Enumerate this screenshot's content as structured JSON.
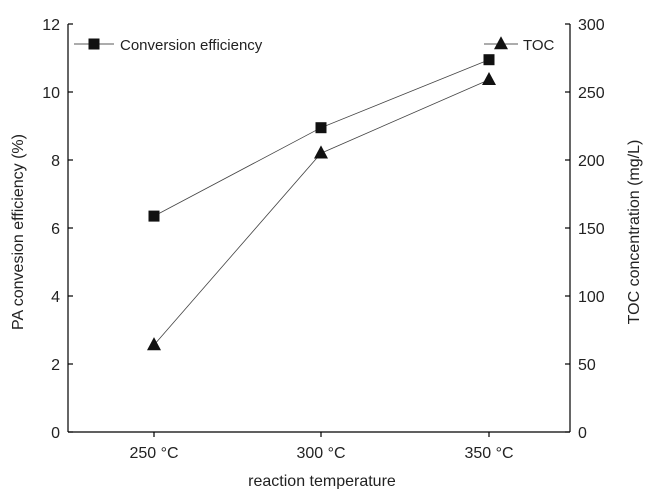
{
  "chart_data": {
    "type": "line",
    "categories": [
      "250 °C",
      "300 °C",
      "350 °C"
    ],
    "xlabel": "reaction temperature",
    "ylabel_left": "PA convesion efficiency (%)",
    "ylabel_right": "TOC concentration (mg/L)",
    "ylim_left": [
      0,
      12
    ],
    "yticks_left": [
      "0",
      "2",
      "4",
      "6",
      "8",
      "10",
      "12"
    ],
    "ylim_right": [
      0,
      300
    ],
    "yticks_right": [
      "0",
      "50",
      "100",
      "150",
      "200",
      "250",
      "300"
    ],
    "grid": false,
    "series": [
      {
        "name": "Conversion efficiency",
        "axis": "left",
        "marker": "square",
        "values": [
          6.35,
          8.95,
          10.95
        ]
      },
      {
        "name": "TOC",
        "axis": "right",
        "marker": "triangle",
        "values": [
          64,
          205,
          259
        ]
      }
    ],
    "legend": [
      {
        "label": "Conversion efficiency",
        "placement": "top-left"
      },
      {
        "label": "TOC",
        "placement": "top-right"
      }
    ]
  }
}
